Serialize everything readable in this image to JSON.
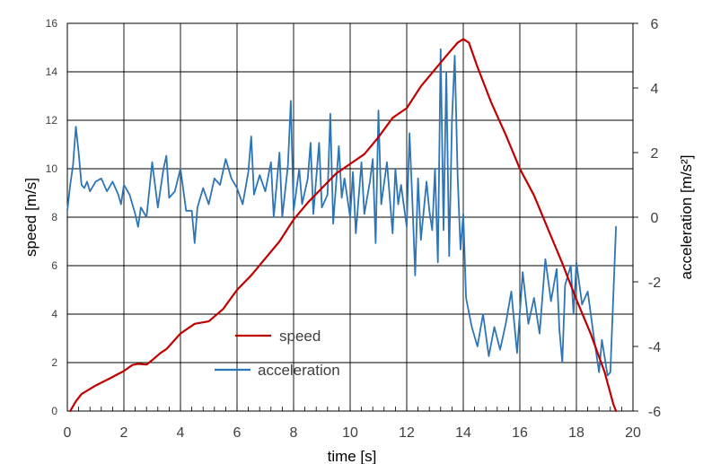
{
  "chart_data": {
    "type": "line",
    "title": "",
    "xlabel": "time [s]",
    "ylabel_left": "speed [m/s]",
    "ylabel_right": "acceleration [m/s²]",
    "xlim": [
      0,
      20
    ],
    "ylim_left": [
      0,
      16
    ],
    "ylim_right": [
      -6,
      6
    ],
    "x_ticks": [
      0,
      2,
      4,
      6,
      8,
      10,
      12,
      14,
      16,
      18,
      20
    ],
    "y_left_ticks": [
      0,
      2,
      4,
      6,
      8,
      10,
      12,
      14,
      16
    ],
    "y_right_ticks": [
      -6,
      -4,
      -2,
      0,
      2,
      4,
      6
    ],
    "grid": true,
    "legend_position": "bottom-center",
    "colors": {
      "speed": "#c00000",
      "acceleration": "#2e75b6"
    },
    "series": [
      {
        "name": "speed",
        "axis": "left",
        "points": [
          [
            0.1,
            0
          ],
          [
            0.3,
            0.4
          ],
          [
            0.5,
            0.7
          ],
          [
            1.0,
            1.05
          ],
          [
            1.5,
            1.35
          ],
          [
            2.0,
            1.65
          ],
          [
            2.3,
            1.9
          ],
          [
            2.5,
            1.95
          ],
          [
            2.8,
            1.92
          ],
          [
            3.0,
            2.1
          ],
          [
            3.3,
            2.4
          ],
          [
            3.5,
            2.55
          ],
          [
            4.0,
            3.2
          ],
          [
            4.5,
            3.6
          ],
          [
            5.0,
            3.7
          ],
          [
            5.5,
            4.2
          ],
          [
            6.0,
            5.0
          ],
          [
            6.5,
            5.6
          ],
          [
            7.0,
            6.3
          ],
          [
            7.5,
            7.0
          ],
          [
            8.0,
            7.9
          ],
          [
            8.5,
            8.6
          ],
          [
            9.0,
            9.2
          ],
          [
            9.5,
            9.8
          ],
          [
            10.0,
            10.2
          ],
          [
            10.5,
            10.6
          ],
          [
            11.0,
            11.3
          ],
          [
            11.5,
            12.1
          ],
          [
            12.0,
            12.5
          ],
          [
            12.5,
            13.4
          ],
          [
            13.0,
            14.1
          ],
          [
            13.5,
            14.8
          ],
          [
            13.8,
            15.2
          ],
          [
            14.0,
            15.35
          ],
          [
            14.2,
            15.2
          ],
          [
            14.5,
            14.2
          ],
          [
            15.0,
            12.7
          ],
          [
            15.5,
            11.4
          ],
          [
            16.0,
            10.0
          ],
          [
            16.5,
            8.9
          ],
          [
            17.0,
            7.5
          ],
          [
            17.5,
            6.1
          ],
          [
            18.0,
            4.6
          ],
          [
            18.5,
            3.2
          ],
          [
            19.0,
            1.6
          ],
          [
            19.3,
            0.3
          ],
          [
            19.4,
            0
          ]
        ]
      },
      {
        "name": "acceleration",
        "axis": "right",
        "points": [
          [
            0.0,
            0.2
          ],
          [
            0.1,
            1.0
          ],
          [
            0.2,
            1.6
          ],
          [
            0.3,
            2.8
          ],
          [
            0.4,
            2.0
          ],
          [
            0.5,
            1.0
          ],
          [
            0.6,
            0.9
          ],
          [
            0.7,
            1.1
          ],
          [
            0.8,
            0.8
          ],
          [
            1.0,
            1.1
          ],
          [
            1.2,
            1.2
          ],
          [
            1.4,
            0.8
          ],
          [
            1.6,
            1.1
          ],
          [
            1.8,
            0.7
          ],
          [
            1.9,
            0.4
          ],
          [
            2.0,
            1.0
          ],
          [
            2.2,
            0.7
          ],
          [
            2.4,
            0.1
          ],
          [
            2.5,
            -0.3
          ],
          [
            2.6,
            0.3
          ],
          [
            2.8,
            0.0
          ],
          [
            3.0,
            1.7
          ],
          [
            3.2,
            0.3
          ],
          [
            3.4,
            1.5
          ],
          [
            3.5,
            1.9
          ],
          [
            3.6,
            0.6
          ],
          [
            3.8,
            0.8
          ],
          [
            4.0,
            1.5
          ],
          [
            4.2,
            0.2
          ],
          [
            4.4,
            0.2
          ],
          [
            4.5,
            -0.8
          ],
          [
            4.6,
            0.3
          ],
          [
            4.8,
            0.9
          ],
          [
            5.0,
            0.4
          ],
          [
            5.2,
            1.2
          ],
          [
            5.4,
            1.0
          ],
          [
            5.6,
            1.8
          ],
          [
            5.8,
            1.2
          ],
          [
            6.0,
            0.9
          ],
          [
            6.2,
            0.4
          ],
          [
            6.4,
            1.4
          ],
          [
            6.5,
            2.5
          ],
          [
            6.6,
            0.7
          ],
          [
            6.8,
            1.3
          ],
          [
            7.0,
            0.8
          ],
          [
            7.2,
            1.7
          ],
          [
            7.3,
            0.0
          ],
          [
            7.5,
            2.0
          ],
          [
            7.6,
            0.0
          ],
          [
            7.8,
            1.6
          ],
          [
            7.9,
            3.6
          ],
          [
            8.0,
            0.2
          ],
          [
            8.2,
            1.5
          ],
          [
            8.3,
            0.4
          ],
          [
            8.5,
            1.2
          ],
          [
            8.6,
            2.3
          ],
          [
            8.7,
            0.1
          ],
          [
            8.9,
            2.3
          ],
          [
            9.0,
            0.3
          ],
          [
            9.2,
            0.7
          ],
          [
            9.3,
            3.2
          ],
          [
            9.4,
            -0.2
          ],
          [
            9.6,
            2.2
          ],
          [
            9.7,
            0.6
          ],
          [
            9.8,
            1.2
          ],
          [
            10.0,
            0.0
          ],
          [
            10.1,
            1.4
          ],
          [
            10.2,
            -0.5
          ],
          [
            10.4,
            1.7
          ],
          [
            10.5,
            0.1
          ],
          [
            10.7,
            1.1
          ],
          [
            10.8,
            1.8
          ],
          [
            10.9,
            -0.8
          ],
          [
            11.0,
            3.3
          ],
          [
            11.1,
            0.4
          ],
          [
            11.3,
            1.7
          ],
          [
            11.5,
            -0.5
          ],
          [
            11.6,
            1.5
          ],
          [
            11.7,
            0.4
          ],
          [
            11.8,
            1.0
          ],
          [
            12.0,
            -0.3
          ],
          [
            12.1,
            2.6
          ],
          [
            12.2,
            0.5
          ],
          [
            12.3,
            -1.8
          ],
          [
            12.4,
            1.2
          ],
          [
            12.5,
            -0.7
          ],
          [
            12.7,
            1.1
          ],
          [
            12.8,
            0.2
          ],
          [
            12.9,
            -0.4
          ],
          [
            13.0,
            1.5
          ],
          [
            13.1,
            -1.4
          ],
          [
            13.2,
            5.2
          ],
          [
            13.3,
            -0.4
          ],
          [
            13.4,
            4.5
          ],
          [
            13.5,
            -1.2
          ],
          [
            13.6,
            3.0
          ],
          [
            13.7,
            5.0
          ],
          [
            13.8,
            1.3
          ],
          [
            13.9,
            -1.0
          ],
          [
            14.0,
            0.1
          ],
          [
            14.1,
            -2.5
          ],
          [
            14.3,
            -3.4
          ],
          [
            14.5,
            -4.0
          ],
          [
            14.7,
            -3.0
          ],
          [
            14.9,
            -4.3
          ],
          [
            15.1,
            -3.4
          ],
          [
            15.3,
            -4.1
          ],
          [
            15.5,
            -3.3
          ],
          [
            15.7,
            -2.3
          ],
          [
            15.9,
            -4.2
          ],
          [
            16.1,
            -1.7
          ],
          [
            16.3,
            -3.3
          ],
          [
            16.5,
            -2.5
          ],
          [
            16.7,
            -3.6
          ],
          [
            16.9,
            -1.3
          ],
          [
            17.1,
            -2.6
          ],
          [
            17.3,
            -1.6
          ],
          [
            17.4,
            -3.5
          ],
          [
            17.5,
            -4.5
          ],
          [
            17.6,
            -2.1
          ],
          [
            17.8,
            -1.5
          ],
          [
            17.9,
            -3.0
          ],
          [
            18.0,
            -1.4
          ],
          [
            18.2,
            -2.7
          ],
          [
            18.4,
            -2.3
          ],
          [
            18.6,
            -3.6
          ],
          [
            18.8,
            -4.8
          ],
          [
            18.9,
            -3.8
          ],
          [
            19.1,
            -4.9
          ],
          [
            19.2,
            -4.8
          ],
          [
            19.4,
            -0.3
          ]
        ]
      }
    ]
  }
}
